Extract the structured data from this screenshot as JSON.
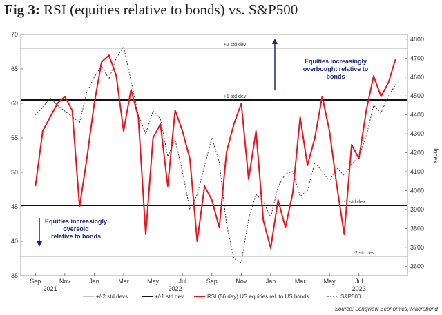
{
  "title": {
    "prefix": "Fig 3:",
    "text": "RSI (equities relative to bonds) vs. S&P500"
  },
  "chart_data": {
    "type": "line",
    "left_axis": {
      "min": 35,
      "max": 70,
      "ticks": [
        "70",
        "65",
        "60",
        "55",
        "50",
        "45",
        "40",
        "35"
      ]
    },
    "right_axis": {
      "label": "Index",
      "min": 3550,
      "max": 4825,
      "ticks": [
        "4800",
        "4700",
        "4600",
        "4500",
        "4400",
        "4300",
        "4200",
        "4100",
        "4000",
        "3900",
        "3800",
        "3700",
        "3600"
      ]
    },
    "x_labels": [
      "Sep",
      "Nov",
      "Jan",
      "Mar",
      "May",
      "Jul",
      "Sep",
      "Nov",
      "Jan",
      "Mar",
      "May",
      "Jul"
    ],
    "year_labels": [
      "2021",
      "2022",
      "2023"
    ],
    "std_lines": [
      {
        "value": 68,
        "label": "+2 std dev",
        "kind": "2"
      },
      {
        "value": 60.5,
        "label": "+1 std dev",
        "kind": "1"
      },
      {
        "value": 45.2,
        "label": "-1 std dev",
        "kind": "1"
      },
      {
        "value": 37.8,
        "label": "-2 std dev",
        "kind": "2"
      }
    ],
    "series": [
      {
        "name": "RSI (56 day) US equities rel. to US bonds",
        "color": "#e8141b",
        "axis": "left",
        "x": [
          0,
          0.5,
          1,
          1.5,
          2,
          2.5,
          3,
          3.5,
          4,
          4.5,
          5,
          5.5,
          6,
          6.5,
          7,
          7.5,
          8,
          8.5,
          9,
          9.5,
          10,
          10.5,
          11,
          11.5,
          12,
          12.5,
          13,
          13.5,
          14,
          14.5,
          15,
          15.5,
          16,
          16.5,
          17,
          17.5,
          18,
          18.5,
          19,
          19.5,
          20,
          20.5,
          21,
          21.5,
          22,
          22.5,
          23,
          23.5,
          24,
          24.5
        ],
        "values": [
          48,
          56,
          58,
          60,
          61,
          59,
          45,
          52,
          60,
          66,
          67,
          64,
          56,
          62,
          58,
          41,
          55,
          57,
          48,
          59,
          56,
          52,
          40,
          48,
          46,
          42,
          53,
          57,
          60,
          49,
          56,
          43,
          39,
          46,
          42,
          47,
          58,
          51,
          55,
          61,
          56,
          48,
          41,
          54,
          52,
          59,
          64,
          61,
          63,
          66.5
        ]
      },
      {
        "name": "S&P500",
        "color": "#333333",
        "axis": "right",
        "dash": true,
        "x": [
          0,
          0.5,
          1,
          1.5,
          2,
          2.5,
          3,
          3.5,
          4,
          4.5,
          5,
          5.5,
          6,
          6.5,
          7,
          7.5,
          8,
          8.5,
          9,
          9.5,
          10,
          10.5,
          11,
          11.5,
          12,
          12.5,
          13,
          13.5,
          14,
          14.5,
          15,
          15.5,
          16,
          16.5,
          17,
          17.5,
          18,
          18.5,
          19,
          19.5,
          20,
          20.5,
          21,
          21.5,
          22,
          22.5,
          23,
          23.5,
          24,
          24.5
        ],
        "values": [
          4400,
          4440,
          4490,
          4450,
          4420,
          4390,
          4360,
          4520,
          4600,
          4660,
          4590,
          4700,
          4760,
          4580,
          4400,
          4300,
          4420,
          4380,
          4180,
          4270,
          4100,
          3900,
          3980,
          4130,
          4280,
          4150,
          3820,
          3640,
          3620,
          3850,
          3980,
          3940,
          3860,
          4020,
          4090,
          4100,
          3970,
          4000,
          4150,
          4100,
          4050,
          4120,
          4080,
          4140,
          4180,
          4290,
          4450,
          4410,
          4500,
          4560
        ]
      }
    ],
    "legend": [
      "+/-2 std devs",
      "+/-1 std dev",
      "RSI (56 day) US equities rel. to US bonds",
      "S&P500"
    ],
    "annotations": [
      {
        "lines": [
          "Equities increasingly",
          "overbought relative to",
          "bonds"
        ]
      },
      {
        "lines": [
          "Equities increasingly",
          "oversold",
          "relative to bonds"
        ]
      }
    ],
    "source": "Source: Longview Economics, Macrobond"
  }
}
